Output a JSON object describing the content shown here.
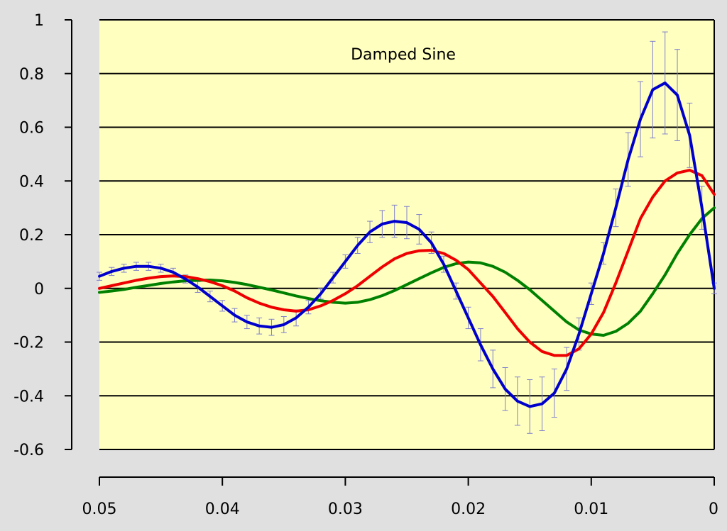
{
  "chart_data": {
    "type": "line",
    "title": "Damped Sine",
    "xlabel": "",
    "ylabel": "",
    "x_reversed": true,
    "xlim": [
      0.05,
      0
    ],
    "ylim": [
      -0.6,
      1
    ],
    "x_ticks": [
      0.05,
      0.04,
      0.03,
      0.02,
      0.01,
      0
    ],
    "x_tick_labels": [
      "0.05",
      "0.04",
      "0.03",
      "0.02",
      "0.01",
      "0"
    ],
    "y_ticks": [
      1,
      0.8,
      0.6,
      0.4,
      0.2,
      0,
      -0.2,
      -0.4,
      -0.6
    ],
    "y_tick_labels": [
      "1",
      "0.8",
      "0.6",
      "0.4",
      "0.2",
      "0",
      "-0.2",
      "-0.4",
      "-0.6"
    ],
    "grid": "horizontal",
    "colors": {
      "background": "#e0e0e0",
      "plot_area": "#ffffc0",
      "grid": "#000000",
      "series_blue": "#0000cc",
      "series_red": "#ee0000",
      "series_green": "#008000",
      "error_bars": "#8080cc"
    },
    "series": [
      {
        "color": "#0000cc",
        "error_bars": true,
        "x": [
          0.05,
          0.049,
          0.048,
          0.047,
          0.046,
          0.045,
          0.044,
          0.043,
          0.042,
          0.041,
          0.04,
          0.039,
          0.038,
          0.037,
          0.036,
          0.035,
          0.034,
          0.033,
          0.032,
          0.031,
          0.03,
          0.029,
          0.028,
          0.027,
          0.026,
          0.025,
          0.024,
          0.023,
          0.022,
          0.021,
          0.02,
          0.019,
          0.018,
          0.017,
          0.016,
          0.015,
          0.014,
          0.013,
          0.012,
          0.011,
          0.01,
          0.009,
          0.008,
          0.007,
          0.006,
          0.005,
          0.004,
          0.003,
          0.002,
          0.001,
          0
        ],
        "y": [
          0.045,
          0.063,
          0.075,
          0.082,
          0.082,
          0.075,
          0.06,
          0.035,
          0.005,
          -0.03,
          -0.065,
          -0.1,
          -0.125,
          -0.14,
          -0.145,
          -0.135,
          -0.11,
          -0.07,
          -0.02,
          0.04,
          0.1,
          0.16,
          0.21,
          0.24,
          0.25,
          0.245,
          0.22,
          0.17,
          0.09,
          -0.01,
          -0.11,
          -0.21,
          -0.3,
          -0.375,
          -0.42,
          -0.44,
          -0.43,
          -0.39,
          -0.3,
          -0.17,
          -0.02,
          0.13,
          0.3,
          0.48,
          0.63,
          0.74,
          0.765,
          0.72,
          0.57,
          0.3,
          0
        ],
        "error": [
          0.015,
          0.015,
          0.015,
          0.015,
          0.015,
          0.015,
          0.015,
          0.015,
          0.02,
          0.02,
          0.02,
          0.025,
          0.025,
          0.03,
          0.03,
          0.03,
          0.03,
          0.025,
          0.02,
          0.02,
          0.025,
          0.03,
          0.04,
          0.05,
          0.06,
          0.06,
          0.055,
          0.04,
          0.03,
          0.03,
          0.04,
          0.06,
          0.07,
          0.08,
          0.09,
          0.1,
          0.1,
          0.09,
          0.08,
          0.06,
          0.04,
          0.04,
          0.07,
          0.1,
          0.14,
          0.18,
          0.19,
          0.17,
          0.12,
          0.08,
          0.02
        ]
      },
      {
        "color": "#ee0000",
        "error_bars": false,
        "x": [
          0.05,
          0.049,
          0.048,
          0.047,
          0.046,
          0.045,
          0.044,
          0.043,
          0.042,
          0.041,
          0.04,
          0.039,
          0.038,
          0.037,
          0.036,
          0.035,
          0.034,
          0.033,
          0.032,
          0.031,
          0.03,
          0.029,
          0.028,
          0.027,
          0.026,
          0.025,
          0.024,
          0.023,
          0.022,
          0.021,
          0.02,
          0.019,
          0.018,
          0.017,
          0.016,
          0.015,
          0.014,
          0.013,
          0.012,
          0.011,
          0.01,
          0.009,
          0.008,
          0.007,
          0.006,
          0.005,
          0.004,
          0.003,
          0.002,
          0.001,
          0
        ],
        "y": [
          0,
          0.01,
          0.02,
          0.03,
          0.038,
          0.044,
          0.046,
          0.044,
          0.036,
          0.025,
          0.01,
          -0.01,
          -0.035,
          -0.055,
          -0.07,
          -0.08,
          -0.085,
          -0.08,
          -0.065,
          -0.045,
          -0.02,
          0.01,
          0.045,
          0.08,
          0.11,
          0.13,
          0.14,
          0.142,
          0.13,
          0.105,
          0.07,
          0.02,
          -0.03,
          -0.09,
          -0.15,
          -0.2,
          -0.235,
          -0.25,
          -0.25,
          -0.225,
          -0.17,
          -0.09,
          0.02,
          0.14,
          0.26,
          0.34,
          0.4,
          0.43,
          0.44,
          0.42,
          0.35
        ]
      },
      {
        "color": "#008000",
        "error_bars": false,
        "x": [
          0.05,
          0.049,
          0.048,
          0.047,
          0.046,
          0.045,
          0.044,
          0.043,
          0.042,
          0.041,
          0.04,
          0.039,
          0.038,
          0.037,
          0.036,
          0.035,
          0.034,
          0.033,
          0.032,
          0.031,
          0.03,
          0.029,
          0.028,
          0.027,
          0.026,
          0.025,
          0.024,
          0.023,
          0.022,
          0.021,
          0.02,
          0.019,
          0.018,
          0.017,
          0.016,
          0.015,
          0.014,
          0.013,
          0.012,
          0.011,
          0.01,
          0.009,
          0.008,
          0.007,
          0.006,
          0.005,
          0.004,
          0.003,
          0.002,
          0.001,
          0
        ],
        "y": [
          -0.015,
          -0.01,
          -0.004,
          0.004,
          0.011,
          0.018,
          0.024,
          0.028,
          0.03,
          0.031,
          0.028,
          0.022,
          0.014,
          0.004,
          -0.006,
          -0.017,
          -0.028,
          -0.038,
          -0.046,
          -0.052,
          -0.055,
          -0.052,
          -0.042,
          -0.027,
          -0.008,
          0.014,
          0.036,
          0.058,
          0.078,
          0.092,
          0.098,
          0.095,
          0.082,
          0.06,
          0.03,
          -0.005,
          -0.045,
          -0.085,
          -0.125,
          -0.155,
          -0.17,
          -0.175,
          -0.16,
          -0.13,
          -0.085,
          -0.02,
          0.05,
          0.13,
          0.2,
          0.26,
          0.3
        ]
      }
    ]
  }
}
